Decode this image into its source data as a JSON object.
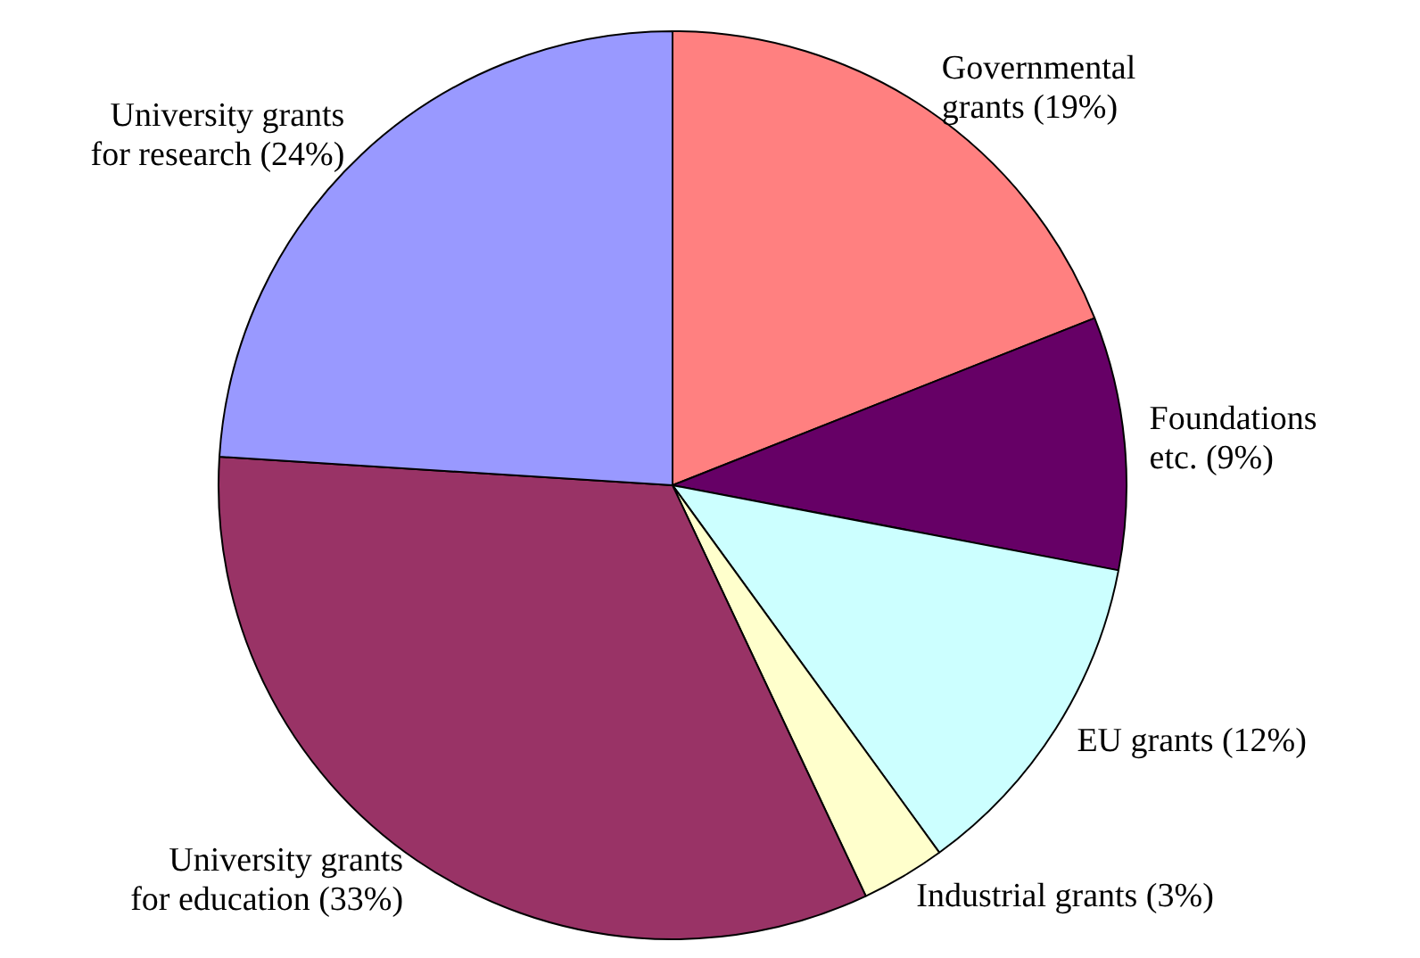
{
  "chart_data": {
    "type": "pie",
    "categories": [
      "Governmental grants (19%)",
      "Foundations etc. (9%)",
      "EU grants (12%)",
      "Industrial grants (3%)",
      "University grants for education (33%)",
      "University grants for research (24%)"
    ],
    "values": [
      19,
      9,
      12,
      3,
      33,
      24
    ],
    "colors": [
      "#ff8080",
      "#660066",
      "#ccffff",
      "#ffffcc",
      "#993366",
      "#9999ff"
    ],
    "legend": false
  }
}
